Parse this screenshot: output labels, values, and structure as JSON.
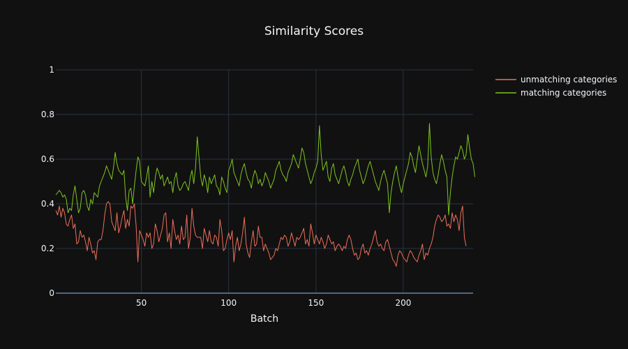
{
  "chart_data": {
    "type": "line",
    "title": "Similarity Scores",
    "xlabel": "Batch",
    "ylabel": "",
    "xlim": [
      1,
      240
    ],
    "ylim": [
      0,
      1
    ],
    "x_ticks": [
      50,
      100,
      150,
      200
    ],
    "y_ticks": [
      0,
      0.2,
      0.4,
      0.6,
      0.8,
      1
    ],
    "y_tick_labels": [
      "0",
      "0.2",
      "0.4",
      "0.6",
      "0.8",
      "1"
    ],
    "grid": true,
    "legend_position": "top-right",
    "series": [
      {
        "name": "unmatching categories",
        "color": "#ef6f5a",
        "values": [
          0.37,
          0.35,
          0.39,
          0.34,
          0.38,
          0.36,
          0.31,
          0.3,
          0.33,
          0.35,
          0.29,
          0.31,
          0.22,
          0.23,
          0.28,
          0.25,
          0.26,
          0.23,
          0.19,
          0.25,
          0.22,
          0.18,
          0.19,
          0.15,
          0.23,
          0.24,
          0.24,
          0.28,
          0.35,
          0.4,
          0.41,
          0.4,
          0.32,
          0.3,
          0.28,
          0.36,
          0.27,
          0.3,
          0.34,
          0.37,
          0.29,
          0.33,
          0.3,
          0.39,
          0.38,
          0.4,
          0.3,
          0.14,
          0.28,
          0.26,
          0.24,
          0.21,
          0.27,
          0.25,
          0.27,
          0.2,
          0.22,
          0.31,
          0.28,
          0.23,
          0.26,
          0.29,
          0.35,
          0.36,
          0.23,
          0.27,
          0.2,
          0.33,
          0.28,
          0.24,
          0.26,
          0.22,
          0.3,
          0.24,
          0.25,
          0.35,
          0.2,
          0.25,
          0.38,
          0.3,
          0.26,
          0.25,
          0.25,
          0.25,
          0.2,
          0.29,
          0.26,
          0.23,
          0.28,
          0.23,
          0.22,
          0.26,
          0.25,
          0.21,
          0.33,
          0.28,
          0.19,
          0.2,
          0.24,
          0.27,
          0.24,
          0.28,
          0.14,
          0.21,
          0.25,
          0.19,
          0.22,
          0.27,
          0.34,
          0.22,
          0.18,
          0.16,
          0.23,
          0.28,
          0.21,
          0.22,
          0.3,
          0.25,
          0.25,
          0.19,
          0.22,
          0.2,
          0.18,
          0.15,
          0.16,
          0.17,
          0.2,
          0.19,
          0.22,
          0.25,
          0.24,
          0.26,
          0.25,
          0.21,
          0.23,
          0.27,
          0.24,
          0.21,
          0.25,
          0.24,
          0.25,
          0.27,
          0.29,
          0.22,
          0.24,
          0.21,
          0.31,
          0.27,
          0.22,
          0.26,
          0.24,
          0.22,
          0.25,
          0.23,
          0.2,
          0.22,
          0.26,
          0.24,
          0.22,
          0.23,
          0.19,
          0.21,
          0.22,
          0.21,
          0.19,
          0.21,
          0.2,
          0.24,
          0.26,
          0.24,
          0.2,
          0.17,
          0.18,
          0.15,
          0.16,
          0.2,
          0.22,
          0.18,
          0.19,
          0.17,
          0.2,
          0.22,
          0.25,
          0.28,
          0.23,
          0.21,
          0.22,
          0.2,
          0.19,
          0.23,
          0.24,
          0.21,
          0.18,
          0.15,
          0.14,
          0.12,
          0.17,
          0.19,
          0.18,
          0.16,
          0.15,
          0.14,
          0.17,
          0.19,
          0.18,
          0.16,
          0.15,
          0.14,
          0.17,
          0.19,
          0.22,
          0.15,
          0.18,
          0.17,
          0.2,
          0.22,
          0.25,
          0.3,
          0.33,
          0.35,
          0.34,
          0.32,
          0.33,
          0.35,
          0.3,
          0.31,
          0.29,
          0.36,
          0.32,
          0.35,
          0.33,
          0.28,
          0.36,
          0.39,
          0.25,
          0.21
        ]
      },
      {
        "name": "matching categories",
        "color": "#7fc51f",
        "values": [
          0.44,
          0.45,
          0.46,
          0.45,
          0.43,
          0.44,
          0.42,
          0.36,
          0.38,
          0.37,
          0.44,
          0.48,
          0.42,
          0.36,
          0.38,
          0.45,
          0.46,
          0.44,
          0.39,
          0.37,
          0.42,
          0.4,
          0.45,
          0.44,
          0.43,
          0.48,
          0.5,
          0.52,
          0.54,
          0.57,
          0.55,
          0.53,
          0.51,
          0.56,
          0.63,
          0.58,
          0.55,
          0.54,
          0.53,
          0.55,
          0.43,
          0.37,
          0.46,
          0.47,
          0.4,
          0.48,
          0.55,
          0.61,
          0.59,
          0.5,
          0.49,
          0.48,
          0.52,
          0.57,
          0.43,
          0.5,
          0.45,
          0.52,
          0.56,
          0.54,
          0.51,
          0.53,
          0.48,
          0.5,
          0.52,
          0.49,
          0.5,
          0.45,
          0.51,
          0.54,
          0.48,
          0.46,
          0.47,
          0.49,
          0.5,
          0.48,
          0.46,
          0.52,
          0.55,
          0.49,
          0.56,
          0.7,
          0.61,
          0.52,
          0.48,
          0.53,
          0.5,
          0.45,
          0.52,
          0.49,
          0.51,
          0.53,
          0.48,
          0.47,
          0.44,
          0.52,
          0.5,
          0.47,
          0.45,
          0.55,
          0.57,
          0.6,
          0.54,
          0.52,
          0.5,
          0.48,
          0.53,
          0.56,
          0.58,
          0.54,
          0.51,
          0.5,
          0.47,
          0.52,
          0.55,
          0.53,
          0.49,
          0.51,
          0.48,
          0.5,
          0.54,
          0.52,
          0.5,
          0.47,
          0.49,
          0.51,
          0.55,
          0.57,
          0.59,
          0.55,
          0.53,
          0.52,
          0.5,
          0.54,
          0.56,
          0.58,
          0.62,
          0.6,
          0.58,
          0.56,
          0.6,
          0.65,
          0.63,
          0.58,
          0.55,
          0.52,
          0.49,
          0.51,
          0.54,
          0.56,
          0.59,
          0.75,
          0.62,
          0.55,
          0.57,
          0.59,
          0.52,
          0.5,
          0.56,
          0.58,
          0.53,
          0.51,
          0.49,
          0.52,
          0.55,
          0.57,
          0.54,
          0.5,
          0.48,
          0.51,
          0.53,
          0.56,
          0.58,
          0.6,
          0.55,
          0.52,
          0.49,
          0.51,
          0.54,
          0.57,
          0.59,
          0.56,
          0.53,
          0.5,
          0.48,
          0.46,
          0.5,
          0.53,
          0.55,
          0.52,
          0.49,
          0.36,
          0.45,
          0.5,
          0.54,
          0.57,
          0.52,
          0.48,
          0.45,
          0.49,
          0.52,
          0.55,
          0.58,
          0.63,
          0.61,
          0.57,
          0.54,
          0.6,
          0.66,
          0.62,
          0.58,
          0.55,
          0.52,
          0.57,
          0.76,
          0.61,
          0.54,
          0.51,
          0.49,
          0.53,
          0.58,
          0.62,
          0.59,
          0.55,
          0.52,
          0.35,
          0.45,
          0.52,
          0.57,
          0.61,
          0.6,
          0.63,
          0.66,
          0.64,
          0.6,
          0.62,
          0.71,
          0.65,
          0.6,
          0.58,
          0.52
        ]
      }
    ]
  }
}
